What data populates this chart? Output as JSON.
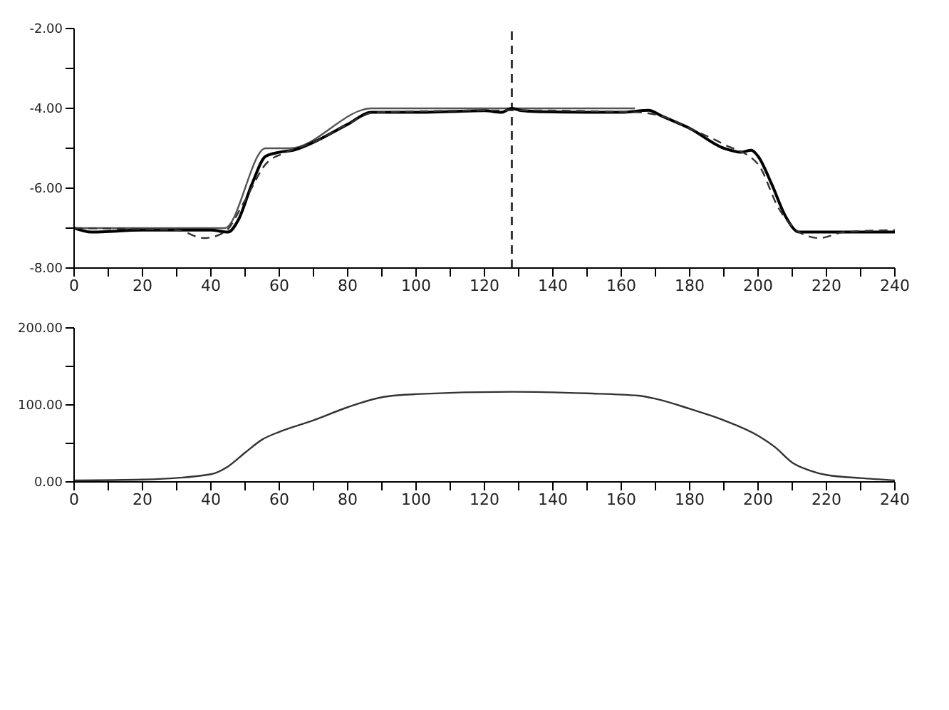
{
  "chart_data": [
    {
      "type": "line",
      "marker": "none",
      "grid": false,
      "legend": false,
      "xlim": [
        0,
        240
      ],
      "xticks": [
        0,
        {
          "value": 10,
          "label": null
        },
        20,
        {
          "value": 30,
          "label": null
        },
        40,
        {
          "value": 50,
          "label": null
        },
        60,
        {
          "value": 70,
          "label": null
        },
        80,
        {
          "value": 90,
          "label": null
        },
        100,
        {
          "value": 110,
          "label": null
        },
        120,
        {
          "value": 130,
          "label": null
        },
        140,
        {
          "value": 150,
          "label": null
        },
        160,
        {
          "value": 170,
          "label": null
        },
        180,
        {
          "value": 190,
          "label": null
        },
        200,
        {
          "value": 210,
          "label": null
        },
        220,
        {
          "value": 230,
          "label": null
        },
        240
      ],
      "ylim": [
        -8,
        -2
      ],
      "yticks": [
        {
          "value": -8,
          "label": "-8.00"
        },
        {
          "value": -7,
          "label": null
        },
        {
          "value": -6,
          "label": "-6.00"
        },
        {
          "value": -5,
          "label": null
        },
        {
          "value": -4,
          "label": "-4.00"
        },
        {
          "value": -3,
          "label": null
        },
        {
          "value": -2,
          "label": "-2.00"
        }
      ],
      "ref_lines": [
        {
          "axis": "x",
          "value": 128,
          "color": "#333333",
          "line_style": "dashed"
        }
      ],
      "series": [
        {
          "color": "#555555",
          "line_style": "solid",
          "x": [
            0,
            44,
            56,
            63,
            87,
            164
          ],
          "values": [
            -7,
            -7,
            -5,
            -5,
            -4,
            -4
          ]
        },
        {
          "color": "#000000",
          "line_style": "solid",
          "x": [
            0,
            5,
            20,
            40,
            45,
            48,
            52,
            56,
            60,
            64,
            70,
            80,
            87,
            100,
            110,
            120,
            125,
            128,
            131,
            135,
            150,
            160,
            168,
            172,
            180,
            190,
            195,
            198,
            200,
            204,
            208,
            212,
            220,
            240
          ],
          "values": [
            -7,
            -7.1,
            -7.05,
            -7.05,
            -7.1,
            -6.8,
            -5.9,
            -5.2,
            -5.1,
            -5.05,
            -4.85,
            -4.4,
            -4.1,
            -4.1,
            -4.08,
            -4.06,
            -4.1,
            -4.0,
            -4.06,
            -4.08,
            -4.1,
            -4.1,
            -4.05,
            -4.2,
            -4.5,
            -5.0,
            -5.1,
            -5.05,
            -5.2,
            -5.9,
            -6.7,
            -7.1,
            -7.1,
            -7.1
          ]
        },
        {
          "color": "#333333",
          "line_style": "dashed",
          "x": [
            0,
            30,
            38,
            44,
            50,
            56,
            62,
            70,
            80,
            88,
            128,
            165,
            172,
            180,
            190,
            200,
            206,
            212,
            218,
            225,
            240
          ],
          "values": [
            -7,
            -7.05,
            -7.25,
            -7.1,
            -6.3,
            -5.4,
            -5.1,
            -4.85,
            -4.4,
            -4.1,
            -4.05,
            -4.1,
            -4.2,
            -4.5,
            -4.9,
            -5.4,
            -6.5,
            -7.1,
            -7.25,
            -7.1,
            -7.05
          ]
        }
      ]
    },
    {
      "type": "line",
      "marker": "none",
      "grid": false,
      "legend": false,
      "xlim": [
        0,
        240
      ],
      "xticks": [
        0,
        {
          "value": 10,
          "label": null
        },
        20,
        {
          "value": 30,
          "label": null
        },
        40,
        {
          "value": 50,
          "label": null
        },
        60,
        {
          "value": 70,
          "label": null
        },
        80,
        {
          "value": 90,
          "label": null
        },
        100,
        {
          "value": 110,
          "label": null
        },
        120,
        {
          "value": 130,
          "label": null
        },
        140,
        {
          "value": 150,
          "label": null
        },
        160,
        {
          "value": 170,
          "label": null
        },
        180,
        {
          "value": 190,
          "label": null
        },
        200,
        {
          "value": 210,
          "label": null
        },
        220,
        {
          "value": 230,
          "label": null
        },
        240
      ],
      "ylim": [
        0,
        200
      ],
      "yticks": [
        {
          "value": 0,
          "label": "0.00"
        },
        {
          "value": 50,
          "label": null
        },
        {
          "value": 100,
          "label": "100.00"
        },
        {
          "value": 150,
          "label": null
        },
        {
          "value": 200,
          "label": "200.00"
        }
      ],
      "series": [
        {
          "color": "#333333",
          "line_style": "solid",
          "x": [
            0,
            20,
            40,
            45,
            50,
            55,
            60,
            70,
            80,
            90,
            100,
            128,
            150,
            165,
            170,
            180,
            190,
            200,
            205,
            210,
            215,
            220,
            230,
            240
          ],
          "values": [
            2,
            3,
            10,
            20,
            38,
            55,
            65,
            80,
            97,
            110,
            114,
            117,
            115,
            112,
            108,
            95,
            80,
            60,
            45,
            25,
            15,
            9,
            5,
            2
          ]
        }
      ]
    }
  ]
}
